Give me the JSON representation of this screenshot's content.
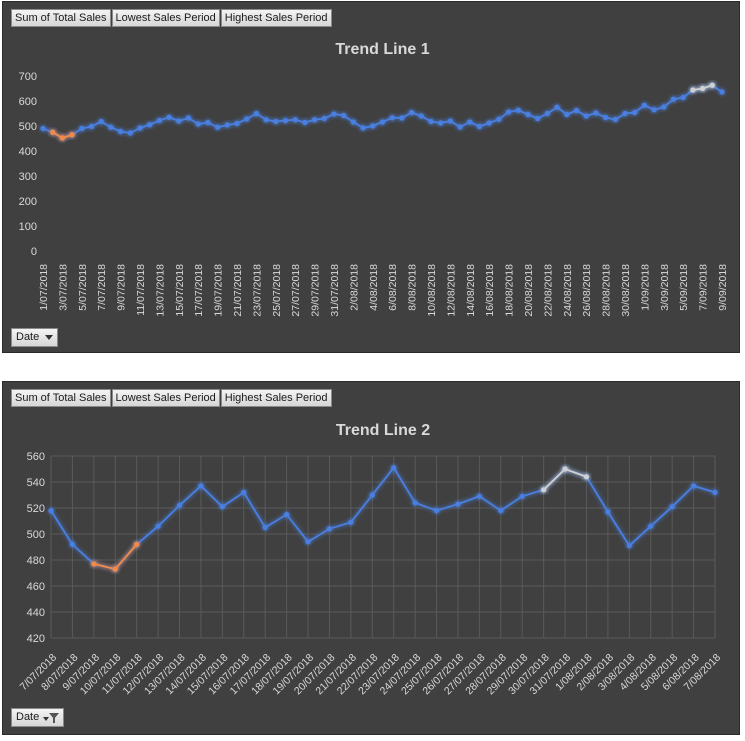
{
  "field_buttons": [
    "Sum of Total Sales",
    "Lowest Sales Period",
    "Highest Sales Period"
  ],
  "date_button_label": "Date",
  "colors": {
    "series": "#4a7fe0",
    "lowest": "#f08a4b",
    "highest": "#d0d0d0",
    "grid": "#5a5a5a",
    "text": "#d9d9d9"
  },
  "chart_data": [
    {
      "type": "line",
      "title": "Trend Line 1",
      "ylim": [
        0,
        700
      ],
      "yticks": [
        0,
        100,
        200,
        300,
        400,
        500,
        600,
        700
      ],
      "grid": false,
      "x_labels": [
        "1/07/2018",
        "3/07/2018",
        "5/07/2018",
        "7/07/2018",
        "9/07/2018",
        "11/07/2018",
        "13/07/2018",
        "15/07/2018",
        "17/07/2018",
        "19/07/2018",
        "21/07/2018",
        "23/07/2018",
        "25/07/2018",
        "27/07/2018",
        "29/07/2018",
        "31/07/2018",
        "2/08/2018",
        "4/08/2018",
        "6/08/2018",
        "8/08/2018",
        "10/08/2018",
        "12/08/2018",
        "14/08/2018",
        "16/08/2018",
        "18/08/2018",
        "20/08/2018",
        "22/08/2018",
        "24/08/2018",
        "26/08/2018",
        "28/08/2018",
        "30/08/2018",
        "1/09/2018",
        "3/09/2018",
        "5/09/2018",
        "7/09/2018",
        "9/09/2018"
      ],
      "values": [
        490,
        475,
        452,
        465,
        490,
        498,
        518,
        495,
        478,
        472,
        492,
        505,
        522,
        535,
        520,
        532,
        508,
        514,
        495,
        504,
        510,
        528,
        550,
        525,
        518,
        522,
        525,
        514,
        525,
        530,
        548,
        542,
        516,
        492,
        500,
        516,
        533,
        532,
        554,
        540,
        518,
        512,
        520,
        496,
        516,
        498,
        512,
        527,
        556,
        563,
        546,
        530,
        550,
        575,
        546,
        562,
        540,
        552,
        534,
        526,
        550,
        554,
        583,
        565,
        576,
        607,
        614,
        644,
        650,
        663,
        636
      ],
      "series": [
        {
          "name": "Sum of Total Sales",
          "range": [
            0,
            70
          ]
        },
        {
          "name": "Lowest Sales Period",
          "range": [
            1,
            3
          ]
        },
        {
          "name": "Highest Sales Period",
          "range": [
            67,
            69
          ]
        }
      ]
    },
    {
      "type": "line",
      "title": "Trend Line 2",
      "ylim": [
        420,
        560
      ],
      "yticks": [
        420,
        440,
        460,
        480,
        500,
        520,
        540,
        560
      ],
      "grid": true,
      "x_labels": [
        "7/07/2018",
        "8/07/2018",
        "9/07/2018",
        "10/07/2018",
        "11/07/2018",
        "12/07/2018",
        "13/07/2018",
        "14/07/2018",
        "15/07/2018",
        "16/07/2018",
        "17/07/2018",
        "18/07/2018",
        "19/07/2018",
        "20/07/2018",
        "21/07/2018",
        "22/07/2018",
        "23/07/2018",
        "24/07/2018",
        "25/07/2018",
        "26/07/2018",
        "27/07/2018",
        "28/07/2018",
        "29/07/2018",
        "30/07/2018",
        "31/07/2018",
        "1/08/2018",
        "2/08/2018",
        "3/08/2018",
        "4/08/2018",
        "5/08/2018",
        "6/08/2018",
        "7/08/2018"
      ],
      "values": [
        518,
        492,
        477,
        473,
        492,
        506,
        522,
        537,
        521,
        532,
        505,
        515,
        494,
        504,
        509,
        530,
        551,
        524,
        518,
        523,
        529,
        518,
        529,
        534,
        550,
        544,
        517,
        491,
        506,
        521,
        537,
        532
      ],
      "series": [
        {
          "name": "Sum of Total Sales",
          "range": [
            0,
            31
          ]
        },
        {
          "name": "Lowest Sales Period",
          "range": [
            2,
            4
          ]
        },
        {
          "name": "Highest Sales Period",
          "range": [
            23,
            25
          ]
        }
      ]
    }
  ]
}
